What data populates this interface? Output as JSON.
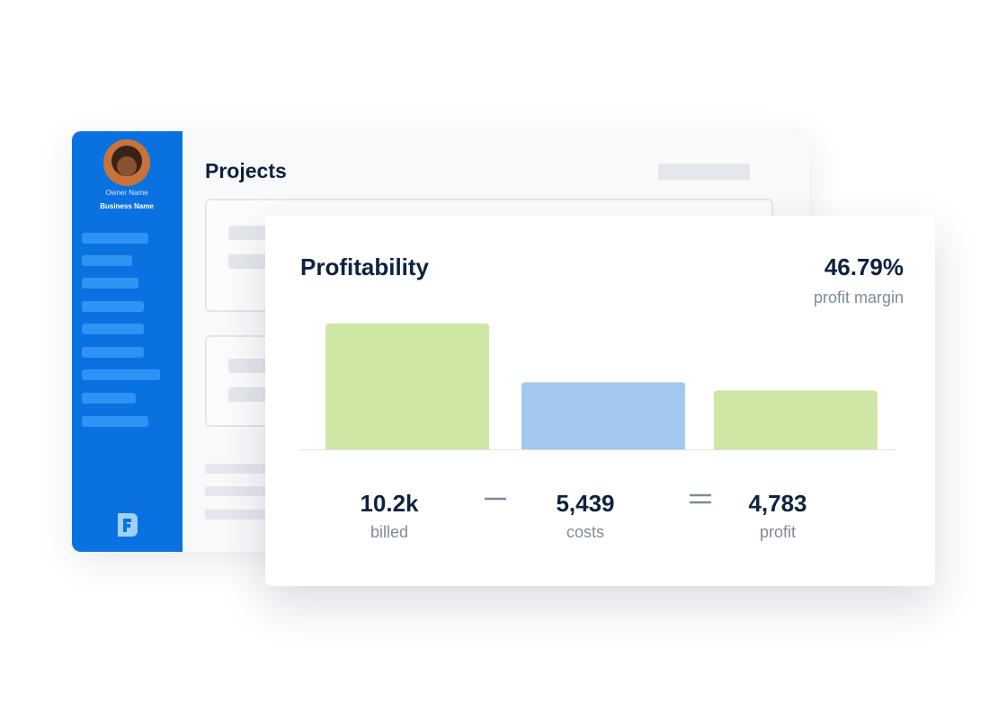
{
  "sidebar": {
    "owner": "Owner Name",
    "business": "Business Name"
  },
  "projects": {
    "title": "Projects"
  },
  "chart_data": {
    "type": "bar",
    "title": "Profitability",
    "annotations": [
      "46.79%",
      "profit margin"
    ],
    "categories": [
      "billed",
      "costs",
      "profit"
    ],
    "values": [
      10200,
      5439,
      4783
    ],
    "value_labels": [
      "10.2k",
      "5,439",
      "4,783"
    ],
    "colors": [
      "#cfe7a4",
      "#a1c9f0",
      "#cfe7a4"
    ]
  }
}
